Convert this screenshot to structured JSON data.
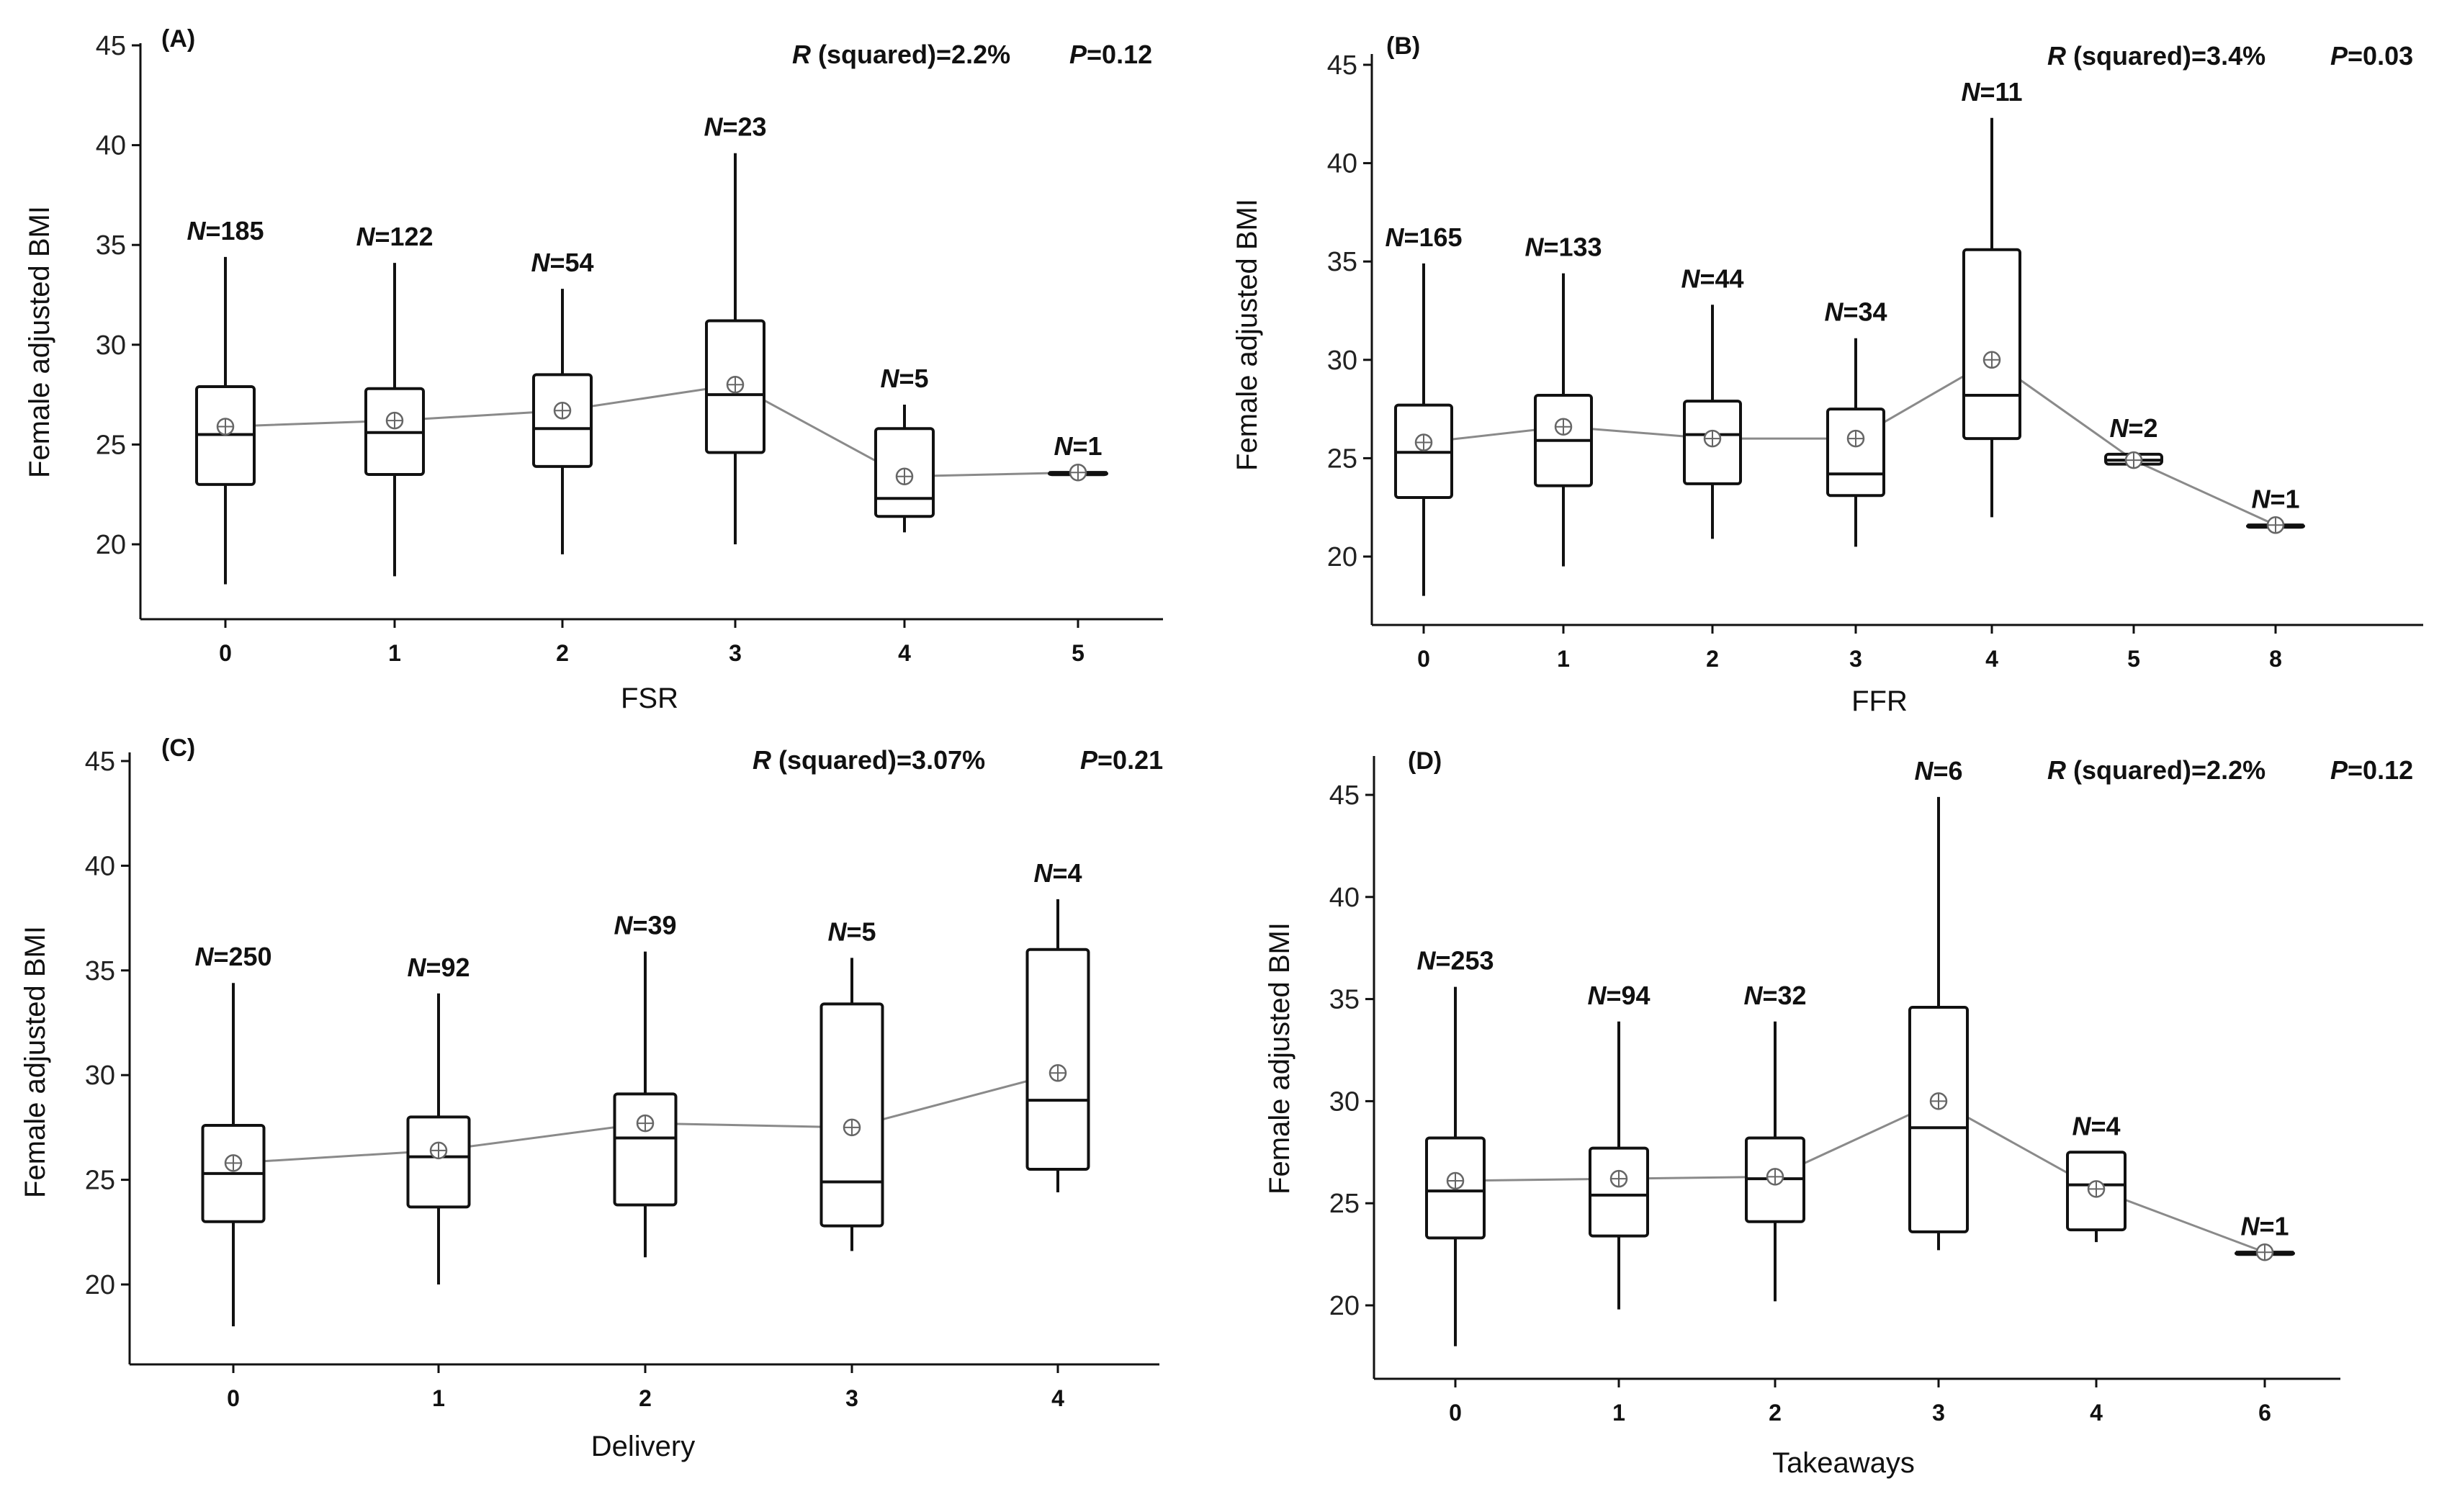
{
  "figure": {
    "ylabel": "Female adjusted BMI",
    "stats": {
      "r_label": "R",
      "r_suffix": " (squared)="
    },
    "count_prefix": "N"
  },
  "chart_data": [
    {
      "type": "box",
      "panel_label": "(A)",
      "xlabel": "FSR",
      "ylabel": "Female adjusted BMI",
      "ylim": [
        17.5,
        45
      ],
      "yticks": [
        20,
        25,
        30,
        35,
        40,
        45
      ],
      "r_squared": "2.2%",
      "p_value": "0.12",
      "categories": [
        "0",
        "1",
        "2",
        "3",
        "4",
        "5"
      ],
      "boxes": [
        {
          "cat": "0",
          "n": "185",
          "min": 18.0,
          "q1": 23.0,
          "median": 25.5,
          "q3": 27.9,
          "max": 34.4,
          "mean": 25.9
        },
        {
          "cat": "1",
          "n": "122",
          "min": 18.4,
          "q1": 23.5,
          "median": 25.6,
          "q3": 27.8,
          "max": 34.1,
          "mean": 26.2
        },
        {
          "cat": "2",
          "n": "54",
          "min": 19.5,
          "q1": 23.9,
          "median": 25.8,
          "q3": 28.5,
          "max": 32.8,
          "mean": 26.7
        },
        {
          "cat": "3",
          "n": "23",
          "min": 20.0,
          "q1": 24.6,
          "median": 27.5,
          "q3": 31.2,
          "max": 39.6,
          "mean": 28.0
        },
        {
          "cat": "4",
          "n": "5",
          "min": 20.6,
          "q1": 21.4,
          "median": 22.3,
          "q3": 25.8,
          "max": 27.0,
          "mean": 23.4
        },
        {
          "cat": "5",
          "n": "1",
          "min": 23.6,
          "q1": 23.6,
          "median": 23.6,
          "q3": 23.6,
          "max": 23.6,
          "mean": 23.6
        }
      ]
    },
    {
      "type": "box",
      "panel_label": "(B)",
      "xlabel": "FFR",
      "ylabel": "Female adjusted BMI",
      "ylim": [
        17.5,
        45.5
      ],
      "yticks": [
        20,
        25,
        30,
        35,
        40,
        45
      ],
      "r_squared": "3.4%",
      "p_value": "0.03",
      "categories": [
        "0",
        "1",
        "2",
        "3",
        "4",
        "5",
        "8"
      ],
      "boxes": [
        {
          "cat": "0",
          "n": "165",
          "min": 18.0,
          "q1": 23.0,
          "median": 25.3,
          "q3": 27.7,
          "max": 34.9,
          "mean": 25.8
        },
        {
          "cat": "1",
          "n": "133",
          "min": 19.5,
          "q1": 23.6,
          "median": 25.9,
          "q3": 28.2,
          "max": 34.4,
          "mean": 26.6
        },
        {
          "cat": "2",
          "n": "44",
          "min": 20.9,
          "q1": 23.7,
          "median": 26.2,
          "q3": 27.9,
          "max": 32.8,
          "mean": 26.0
        },
        {
          "cat": "3",
          "n": "34",
          "min": 20.5,
          "q1": 23.1,
          "median": 24.2,
          "q3": 27.5,
          "max": 31.1,
          "mean": 26.0
        },
        {
          "cat": "4",
          "n": "11",
          "min": 22.0,
          "q1": 26.0,
          "median": 28.2,
          "q3": 35.6,
          "max": 42.3,
          "mean": 30.0
        },
        {
          "cat": "5",
          "n": "2",
          "min": 24.7,
          "q1": 24.7,
          "median": 24.9,
          "q3": 25.2,
          "max": 25.2,
          "mean": 24.9
        },
        {
          "cat": "8",
          "n": "1",
          "min": 21.6,
          "q1": 21.6,
          "median": 21.6,
          "q3": 21.6,
          "max": 21.6,
          "mean": 21.6
        }
      ]
    },
    {
      "type": "box",
      "panel_label": "(C)",
      "xlabel": "Delivery",
      "ylabel": "Female adjusted BMI",
      "ylim": [
        16,
        45
      ],
      "yticks": [
        20,
        25,
        30,
        35,
        40,
        45
      ],
      "r_squared": "3.07%",
      "p_value": "0.21",
      "categories": [
        "0",
        "1",
        "2",
        "3",
        "4"
      ],
      "boxes": [
        {
          "cat": "0",
          "n": "250",
          "min": 18.0,
          "q1": 23.0,
          "median": 25.3,
          "q3": 27.6,
          "max": 34.4,
          "mean": 25.8
        },
        {
          "cat": "1",
          "n": "92",
          "min": 20.0,
          "q1": 23.7,
          "median": 26.1,
          "q3": 28.0,
          "max": 33.9,
          "mean": 26.4
        },
        {
          "cat": "2",
          "n": "39",
          "min": 21.3,
          "q1": 23.8,
          "median": 27.0,
          "q3": 29.1,
          "max": 35.9,
          "mean": 27.7
        },
        {
          "cat": "3",
          "n": "5",
          "min": 21.6,
          "q1": 22.8,
          "median": 24.9,
          "q3": 33.4,
          "max": 35.6,
          "mean": 27.5
        },
        {
          "cat": "4",
          "n": "4",
          "min": 24.4,
          "q1": 25.5,
          "median": 28.8,
          "q3": 36.0,
          "max": 38.4,
          "mean": 30.1
        }
      ]
    },
    {
      "type": "box",
      "panel_label": "(D)",
      "xlabel": "Takeaways",
      "ylabel": "Female adjusted BMI",
      "ylim": [
        16.5,
        46.5
      ],
      "yticks": [
        20,
        25,
        30,
        35,
        40,
        45
      ],
      "r_squared": "2.2%",
      "p_value": "0.12",
      "categories": [
        "0",
        "1",
        "2",
        "3",
        "4",
        "6"
      ],
      "boxes": [
        {
          "cat": "0",
          "n": "253",
          "min": 18.0,
          "q1": 23.3,
          "median": 25.6,
          "q3": 28.2,
          "max": 35.6,
          "mean": 26.1
        },
        {
          "cat": "1",
          "n": "94",
          "min": 19.8,
          "q1": 23.4,
          "median": 25.4,
          "q3": 27.7,
          "max": 33.9,
          "mean": 26.2
        },
        {
          "cat": "2",
          "n": "32",
          "min": 20.2,
          "q1": 24.1,
          "median": 26.2,
          "q3": 28.2,
          "max": 33.9,
          "mean": 26.3
        },
        {
          "cat": "3",
          "n": "6",
          "min": 22.7,
          "q1": 23.6,
          "median": 28.7,
          "q3": 34.6,
          "max": 44.9,
          "mean": 30.0
        },
        {
          "cat": "4",
          "n": "4",
          "min": 23.1,
          "q1": 23.7,
          "median": 25.9,
          "q3": 27.5,
          "max": 27.5,
          "mean": 25.7
        },
        {
          "cat": "6",
          "n": "1",
          "min": 22.6,
          "q1": 22.6,
          "median": 22.6,
          "q3": 22.6,
          "max": 22.6,
          "mean": 22.6
        }
      ]
    }
  ]
}
